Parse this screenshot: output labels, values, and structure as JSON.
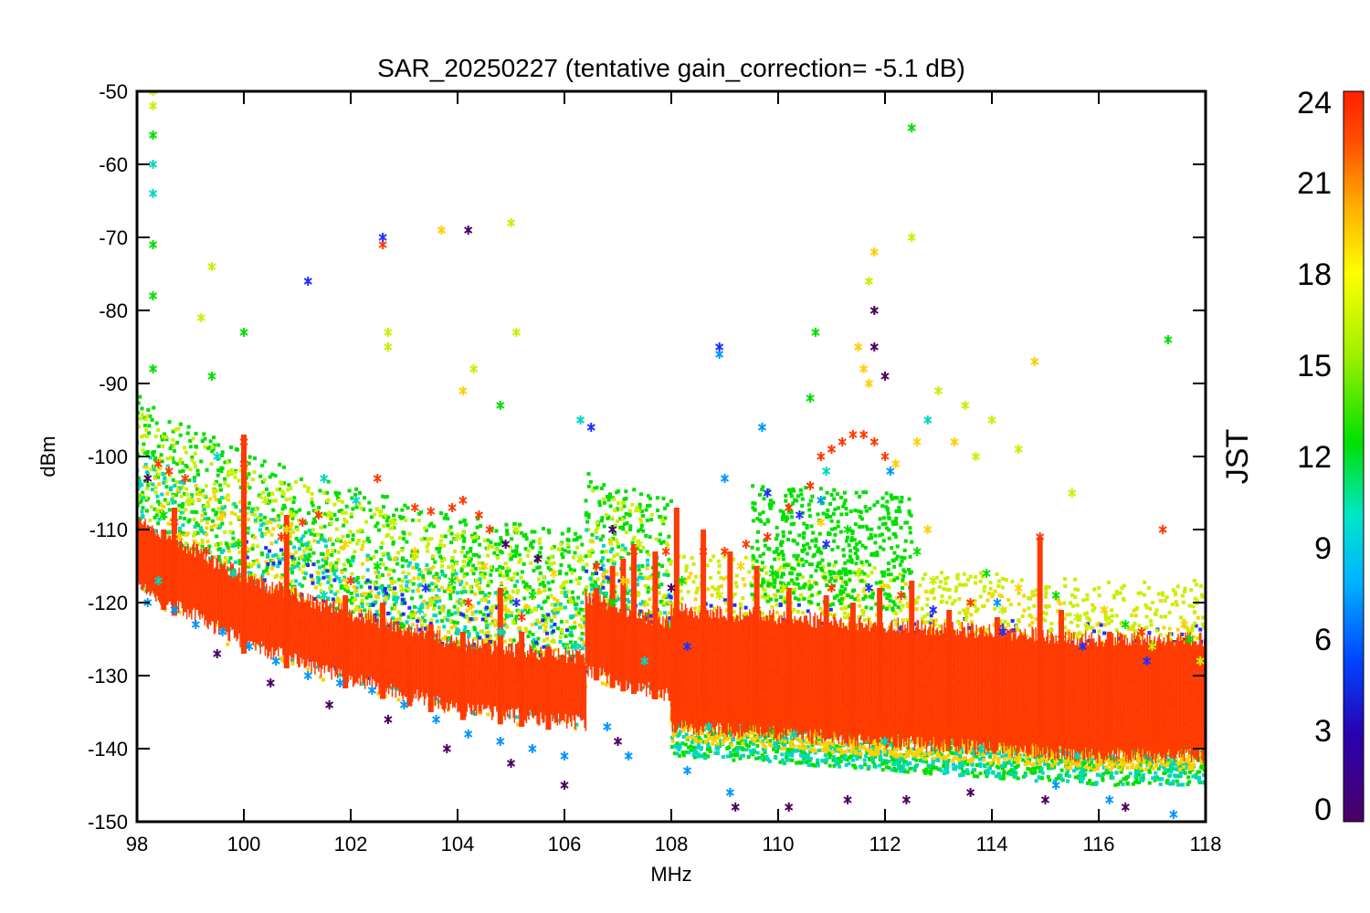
{
  "chart_data": {
    "type": "scatter",
    "title": "SAR_20250227 (tentative gain_correction= -5.1 dB)",
    "xlabel": "MHz",
    "ylabel": "dBm",
    "xlim": [
      98,
      118
    ],
    "ylim": [
      -150,
      -50
    ],
    "xticks": [
      98,
      100,
      102,
      104,
      106,
      108,
      110,
      112,
      114,
      116,
      118
    ],
    "yticks": [
      -50,
      -60,
      -70,
      -80,
      -90,
      -100,
      -110,
      -120,
      -130,
      -140,
      -150
    ],
    "grid": false,
    "colorbar": {
      "label": "JST",
      "range": [
        0,
        24
      ],
      "ticks": [
        24,
        21,
        18,
        15,
        12,
        9,
        6,
        3,
        0
      ],
      "colormap": "rainbow",
      "colors": [
        "#4b0066",
        "#2a00b0",
        "#0044ff",
        "#00b4ff",
        "#00e6c8",
        "#00e000",
        "#a0f000",
        "#ffff00",
        "#ffb000",
        "#ff5000",
        "#ff2000"
      ]
    },
    "noise_floor": {
      "color": "#ff3a00",
      "segments": [
        {
          "x": [
            98,
            100,
            102,
            104,
            106.4
          ],
          "y_center": [
            -113,
            -121,
            -126,
            -130,
            -132
          ],
          "thickness": 4.5
        },
        {
          "x": [
            106.4,
            107,
            107.6,
            108
          ],
          "y_center": [
            -124,
            -126,
            -127,
            -128
          ],
          "thickness": 5
        },
        {
          "x": [
            108,
            110,
            112,
            114,
            116,
            118
          ],
          "y_center": [
            -129,
            -130,
            -131,
            -132,
            -133,
            -133
          ],
          "thickness": 8
        }
      ]
    },
    "series": [
      {
        "color": "#ff3a00",
        "points": [
          [
            98.4,
            -101
          ],
          [
            98.6,
            -102
          ],
          [
            98.9,
            -103
          ],
          [
            100,
            -98
          ],
          [
            100,
            -101
          ],
          [
            101.1,
            -109
          ],
          [
            101.4,
            -108
          ],
          [
            102.5,
            -103
          ],
          [
            103.2,
            -107
          ],
          [
            103.5,
            -107.5
          ],
          [
            103.9,
            -107
          ],
          [
            104.1,
            -106
          ],
          [
            104.4,
            -108
          ],
          [
            104.6,
            -110
          ],
          [
            109,
            -113
          ],
          [
            109.4,
            -112
          ],
          [
            109.8,
            -111
          ],
          [
            110.2,
            -107
          ],
          [
            110.6,
            -104
          ],
          [
            110.8,
            -100
          ],
          [
            111,
            -99
          ],
          [
            111.2,
            -98
          ],
          [
            111.4,
            -97
          ],
          [
            111.6,
            -97
          ],
          [
            111.8,
            -98
          ],
          [
            112,
            -100
          ],
          [
            102.6,
            -71
          ],
          [
            114.9,
            -111
          ],
          [
            117.2,
            -110
          ],
          [
            98.2,
            -110
          ],
          [
            98.7,
            -109
          ],
          [
            99.3,
            -113
          ],
          [
            100.7,
            -111
          ],
          [
            102,
            -117
          ],
          [
            104.2,
            -120
          ],
          [
            105.2,
            -122
          ],
          [
            106.6,
            -115
          ],
          [
            107.3,
            -113
          ],
          [
            107.9,
            -113
          ],
          [
            108.6,
            -113
          ],
          [
            109.6,
            -121
          ],
          [
            111,
            -118
          ],
          [
            112.3,
            -119
          ],
          [
            113.6,
            -120
          ],
          [
            115.3,
            -125
          ],
          [
            116.8,
            -124
          ]
        ]
      },
      {
        "color": "#ffd000",
        "points": [
          [
            103.7,
            -69
          ],
          [
            104.1,
            -91
          ],
          [
            111.5,
            -85
          ],
          [
            111.6,
            -88
          ],
          [
            111.7,
            -90
          ],
          [
            111.8,
            -72
          ],
          [
            112.2,
            -101
          ],
          [
            112.6,
            -98
          ],
          [
            113.3,
            -98
          ],
          [
            114.8,
            -87
          ],
          [
            98.8,
            -111
          ],
          [
            99.6,
            -108
          ],
          [
            100.8,
            -110
          ],
          [
            101.9,
            -112
          ],
          [
            103.2,
            -113
          ],
          [
            104.5,
            -115
          ],
          [
            105.8,
            -116
          ],
          [
            107.1,
            -117
          ],
          [
            109.3,
            -115
          ],
          [
            110.8,
            -109
          ],
          [
            112.8,
            -110
          ],
          [
            114.5,
            -118
          ],
          [
            116.1,
            -121
          ],
          [
            117.6,
            -123
          ]
        ]
      },
      {
        "color": "#c8f000",
        "points": [
          [
            98.3,
            -50
          ],
          [
            98.3,
            -52
          ],
          [
            99.4,
            -74
          ],
          [
            99.2,
            -81
          ],
          [
            102.7,
            -83
          ],
          [
            102.7,
            -85
          ],
          [
            105,
            -68
          ],
          [
            104.3,
            -88
          ],
          [
            105.1,
            -83
          ],
          [
            111.7,
            -76
          ],
          [
            111.8,
            -80
          ],
          [
            112.5,
            -70
          ],
          [
            113,
            -91
          ],
          [
            113.5,
            -93
          ],
          [
            114,
            -95
          ],
          [
            114.5,
            -99
          ],
          [
            113.7,
            -100
          ],
          [
            115.5,
            -105
          ],
          [
            99,
            -106
          ],
          [
            100.4,
            -106
          ],
          [
            101.6,
            -108
          ],
          [
            102.8,
            -109
          ],
          [
            104,
            -111
          ],
          [
            105.1,
            -110
          ],
          [
            106.3,
            -114
          ],
          [
            107.4,
            -112
          ],
          [
            108.9,
            -119
          ],
          [
            110.1,
            -118
          ],
          [
            111.5,
            -116
          ],
          [
            112.9,
            -117
          ],
          [
            114.2,
            -121
          ],
          [
            115.6,
            -122
          ],
          [
            117,
            -126
          ],
          [
            117.9,
            -128
          ]
        ]
      },
      {
        "color": "#00e000",
        "points": [
          [
            98.3,
            -56
          ],
          [
            98.3,
            -71
          ],
          [
            98.3,
            -78
          ],
          [
            98.3,
            -88
          ],
          [
            99.4,
            -89
          ],
          [
            100,
            -83
          ],
          [
            104.8,
            -93
          ],
          [
            110.7,
            -83
          ],
          [
            110.6,
            -92
          ],
          [
            112.5,
            -55
          ],
          [
            117.3,
            -84
          ],
          [
            98.5,
            -108
          ],
          [
            99.9,
            -112
          ],
          [
            101.2,
            -114
          ],
          [
            102.5,
            -115
          ],
          [
            103.9,
            -117
          ],
          [
            105.4,
            -119
          ],
          [
            106.9,
            -120
          ],
          [
            108.2,
            -117
          ],
          [
            109.9,
            -116
          ],
          [
            111.3,
            -110
          ],
          [
            112.6,
            -113
          ],
          [
            113.9,
            -116
          ],
          [
            115.2,
            -119
          ],
          [
            116.5,
            -123
          ],
          [
            117.7,
            -125
          ]
        ]
      },
      {
        "color": "#00d8c0",
        "points": [
          [
            98.3,
            -60
          ],
          [
            98.3,
            -64
          ],
          [
            99.5,
            -100
          ],
          [
            101.5,
            -103
          ],
          [
            102.1,
            -106
          ],
          [
            106.3,
            -95
          ],
          [
            110.9,
            -102
          ],
          [
            112.8,
            -95
          ],
          [
            98.4,
            -117
          ],
          [
            99.8,
            -116
          ],
          [
            101.5,
            -119
          ],
          [
            103.3,
            -121
          ],
          [
            104.8,
            -124
          ],
          [
            106.2,
            -126
          ],
          [
            107.5,
            -128
          ],
          [
            108.7,
            -137
          ],
          [
            110.3,
            -138
          ],
          [
            112,
            -139
          ],
          [
            113.8,
            -140
          ],
          [
            115.6,
            -141
          ],
          [
            117.4,
            -142
          ]
        ]
      },
      {
        "color": "#0096ff",
        "points": [
          [
            98.2,
            -120
          ],
          [
            98.7,
            -121
          ],
          [
            99.1,
            -123
          ],
          [
            99.6,
            -124
          ],
          [
            100.1,
            -126
          ],
          [
            100.6,
            -128
          ],
          [
            101.2,
            -130
          ],
          [
            101.8,
            -131
          ],
          [
            102.4,
            -132
          ],
          [
            103,
            -134
          ],
          [
            103.6,
            -136
          ],
          [
            104.2,
            -138
          ],
          [
            104.8,
            -139
          ],
          [
            105.4,
            -140
          ],
          [
            106,
            -141
          ],
          [
            108.9,
            -86
          ],
          [
            109,
            -103
          ],
          [
            109.7,
            -96
          ],
          [
            110.8,
            -106
          ],
          [
            112.1,
            -102
          ],
          [
            114.1,
            -120
          ],
          [
            115.2,
            -145
          ],
          [
            116.2,
            -147
          ],
          [
            117.4,
            -149
          ],
          [
            106.8,
            -137
          ],
          [
            107.2,
            -141
          ],
          [
            108.3,
            -143
          ],
          [
            109.1,
            -146
          ]
        ]
      },
      {
        "color": "#2030ff",
        "points": [
          [
            102.6,
            -70
          ],
          [
            101.2,
            -76
          ],
          [
            108.9,
            -85
          ],
          [
            106.5,
            -96
          ],
          [
            109.8,
            -105
          ],
          [
            110.4,
            -108
          ],
          [
            110.9,
            -112
          ],
          [
            111.7,
            -118
          ],
          [
            112.9,
            -121
          ],
          [
            114.2,
            -124
          ],
          [
            115.7,
            -126
          ],
          [
            116.9,
            -128
          ],
          [
            103.4,
            -118
          ],
          [
            105.1,
            -120
          ],
          [
            108.3,
            -126
          ]
        ]
      },
      {
        "color": "#4b0066",
        "points": [
          [
            98.2,
            -103
          ],
          [
            104.2,
            -69
          ],
          [
            111.8,
            -80
          ],
          [
            111.8,
            -85
          ],
          [
            112,
            -89
          ],
          [
            99.5,
            -127
          ],
          [
            100.5,
            -131
          ],
          [
            101.6,
            -134
          ],
          [
            102.7,
            -136
          ],
          [
            103.8,
            -140
          ],
          [
            105,
            -142
          ],
          [
            106,
            -145
          ],
          [
            107,
            -139
          ],
          [
            109.2,
            -148
          ],
          [
            110.2,
            -148
          ],
          [
            111.3,
            -147
          ],
          [
            112.4,
            -147
          ],
          [
            113.6,
            -146
          ],
          [
            115,
            -147
          ],
          [
            116.5,
            -148
          ],
          [
            104.9,
            -112
          ],
          [
            105.5,
            -114
          ],
          [
            106.9,
            -110
          ],
          [
            108,
            -118
          ]
        ]
      }
    ],
    "scatter_clusters": [
      {
        "color": "#00e000",
        "x": [
          98,
          108
        ],
        "y_offset": [
          4,
          22
        ],
        "count": 1100
      },
      {
        "color": "#c8f000",
        "x": [
          98,
          108
        ],
        "y_offset": [
          2,
          20
        ],
        "count": 800
      },
      {
        "color": "#00d8c0",
        "x": [
          98,
          108
        ],
        "y_offset": [
          -5,
          14
        ],
        "count": 600
      },
      {
        "color": "#ffd000",
        "x": [
          98,
          118
        ],
        "y_offset": [
          -6,
          14
        ],
        "count": 900
      },
      {
        "color": "#2030ff",
        "x": [
          100,
          118
        ],
        "y_offset": [
          -4,
          10
        ],
        "count": 500
      },
      {
        "color": "#00e000",
        "x": [
          108,
          118
        ],
        "y_offset": [
          -12,
          -4
        ],
        "count": 1300
      },
      {
        "color": "#00d8c0",
        "x": [
          108,
          118
        ],
        "y_offset": [
          -12,
          -5
        ],
        "count": 700
      },
      {
        "color": "#ffd000",
        "x": [
          108,
          118
        ],
        "y_offset": [
          -10,
          -4
        ],
        "count": 1300
      },
      {
        "color": "#c8f000",
        "x": [
          108,
          118
        ],
        "y_offset": [
          4,
          16
        ],
        "count": 700
      },
      {
        "color": "#00e000",
        "x": [
          109.5,
          112.5
        ],
        "y_offset": [
          10,
          26
        ],
        "count": 500
      }
    ],
    "vertical_spikes": [
      {
        "x": 98.5,
        "y_top": -110
      },
      {
        "x": 98.7,
        "y_top": -107
      },
      {
        "x": 100,
        "y_top": -97
      },
      {
        "x": 100.8,
        "y_top": -108
      },
      {
        "x": 101.9,
        "y_top": -119
      },
      {
        "x": 102.6,
        "y_top": -120
      },
      {
        "x": 103.1,
        "y_top": -126
      },
      {
        "x": 103.5,
        "y_top": -123
      },
      {
        "x": 104.1,
        "y_top": -124
      },
      {
        "x": 104.8,
        "y_top": -118
      },
      {
        "x": 105.2,
        "y_top": -124
      },
      {
        "x": 105.7,
        "y_top": -126
      },
      {
        "x": 106.6,
        "y_top": -118
      },
      {
        "x": 106.9,
        "y_top": -115
      },
      {
        "x": 107.1,
        "y_top": -114
      },
      {
        "x": 107.3,
        "y_top": -112
      },
      {
        "x": 107.7,
        "y_top": -113
      },
      {
        "x": 108.1,
        "y_top": -107
      },
      {
        "x": 108.6,
        "y_top": -110
      },
      {
        "x": 109.1,
        "y_top": -113
      },
      {
        "x": 109.6,
        "y_top": -115
      },
      {
        "x": 110.2,
        "y_top": -118
      },
      {
        "x": 110.9,
        "y_top": -119
      },
      {
        "x": 111.4,
        "y_top": -120
      },
      {
        "x": 111.9,
        "y_top": -118
      },
      {
        "x": 112.5,
        "y_top": -117
      },
      {
        "x": 113.2,
        "y_top": -121
      },
      {
        "x": 114.1,
        "y_top": -122
      },
      {
        "x": 114.9,
        "y_top": -111
      },
      {
        "x": 115.3,
        "y_top": -121
      },
      {
        "x": 116.2,
        "y_top": -124
      },
      {
        "x": 117.1,
        "y_top": -126
      }
    ]
  }
}
